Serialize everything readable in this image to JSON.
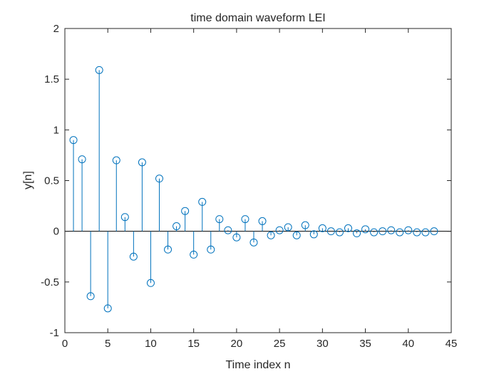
{
  "chart_data": {
    "type": "stem",
    "title": "time domain waveform LEI",
    "xlabel": "Time index n",
    "ylabel": "y[n]",
    "xlim": [
      0,
      45
    ],
    "ylim": [
      -1,
      2
    ],
    "xticks": [
      0,
      5,
      10,
      15,
      20,
      25,
      30,
      35,
      40,
      45
    ],
    "yticks": [
      -1,
      -0.5,
      0,
      0.5,
      1,
      1.5,
      2
    ],
    "xtick_labels": [
      "0",
      "5",
      "10",
      "15",
      "20",
      "25",
      "30",
      "35",
      "40",
      "45"
    ],
    "ytick_labels": [
      "-1",
      "-0.5",
      "0",
      "0.5",
      "1",
      "1.5",
      "2"
    ],
    "grid": false,
    "series": [
      {
        "color": "#0072BD",
        "marker": "circle",
        "x": [
          1,
          2,
          3,
          4,
          5,
          6,
          7,
          8,
          9,
          10,
          11,
          12,
          13,
          14,
          15,
          16,
          17,
          18,
          19,
          20,
          21,
          22,
          23,
          24,
          25,
          26,
          27,
          28,
          29,
          30,
          31,
          32,
          33,
          34,
          35,
          36,
          37,
          38,
          39,
          40,
          41,
          42,
          43
        ],
        "y": [
          0.9,
          0.71,
          -0.64,
          1.59,
          -0.76,
          0.7,
          0.14,
          -0.25,
          0.68,
          -0.51,
          0.52,
          -0.18,
          0.05,
          0.2,
          -0.23,
          0.29,
          -0.18,
          0.12,
          0.01,
          -0.06,
          0.12,
          -0.11,
          0.1,
          -0.04,
          0.01,
          0.04,
          -0.04,
          0.06,
          -0.03,
          0.03,
          0.0,
          -0.01,
          0.03,
          -0.02,
          0.02,
          -0.01,
          0.0,
          0.01,
          -0.01,
          0.01,
          -0.01,
          -0.01,
          0.0
        ]
      }
    ]
  }
}
